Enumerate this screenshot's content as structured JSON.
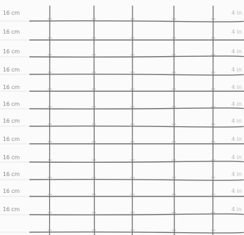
{
  "sheet": {
    "row_labels": [
      "16 cm",
      "16 cm",
      "16 cm",
      "16 cm",
      "16 cm",
      "16 cm",
      "16 cm",
      "16 cm",
      "16 cm",
      "16 cm",
      "16 cm",
      "16 cm"
    ],
    "right_labels": [
      "4 in",
      "4 in",
      "4 in",
      "4 in",
      "4 in",
      "4 in",
      "4 in",
      "4 in",
      "4 in",
      "4 in",
      "4 in",
      "4 in"
    ],
    "colors": {
      "grid_line": "#6f6f6f",
      "label_text": "#8a8a8a",
      "faded_text": "#b7b7b7",
      "background": "#fbfbfb"
    }
  }
}
